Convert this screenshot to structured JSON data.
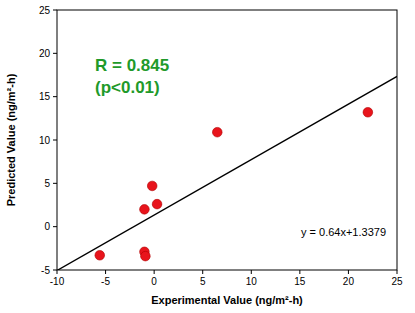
{
  "chart_data": {
    "type": "scatter",
    "x_label": "Experimental Value (ng/m²-h)",
    "y_label": "Predicted Value (ng/m²-h)",
    "x": [
      -5.6,
      -1.0,
      -0.9,
      -1.0,
      -0.2,
      0.3,
      6.5,
      22.0
    ],
    "values": [
      -3.3,
      -2.9,
      -3.4,
      2.0,
      4.7,
      2.6,
      10.9,
      13.2
    ],
    "color": "#e8141c",
    "marker": "circle",
    "xlim": [
      -10,
      25
    ],
    "xticks": [
      -10,
      -5,
      0,
      5,
      10,
      15,
      20,
      25
    ],
    "ylim": [
      -5,
      25
    ],
    "yticks": [
      -5,
      0,
      5,
      10,
      15,
      20,
      25
    ],
    "grid": false,
    "trendline": {
      "slope": 0.64,
      "intercept": 1.3379,
      "label": "y = 0.64x+1.3379"
    },
    "annotations": [
      {
        "text": "R = 0.845"
      },
      {
        "text": "(p<0.01)"
      }
    ]
  }
}
